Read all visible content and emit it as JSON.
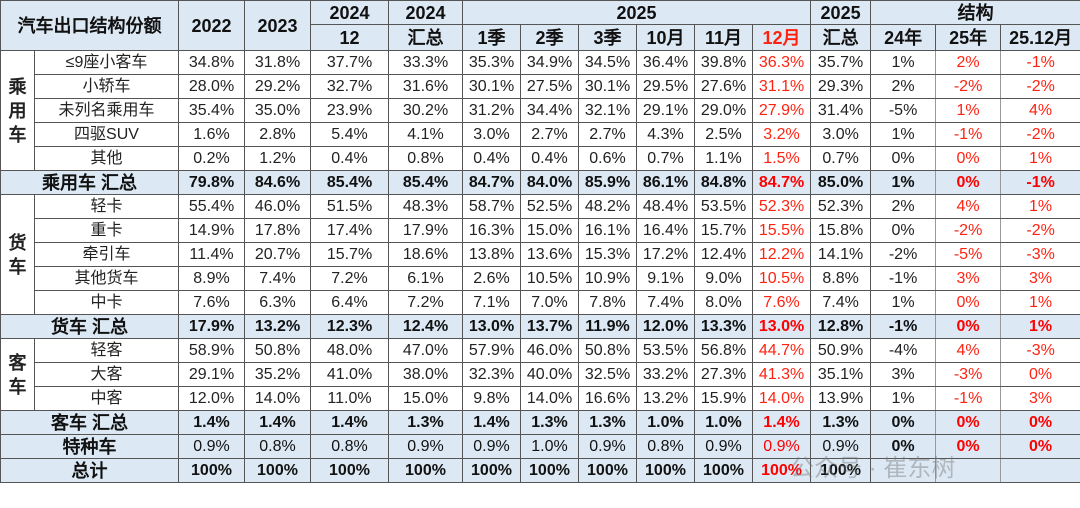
{
  "header": {
    "title": "汽车出口结构份额",
    "y2022": "2022",
    "y2023": "2023",
    "y2024": "2024",
    "m12": "12",
    "y2024b": "2024",
    "total_label": "汇总",
    "y2025": "2025",
    "q1": "1季",
    "q2": "2季",
    "q3": "3季",
    "oct": "10月",
    "nov": "11月",
    "dec": "12月",
    "y2025b": "2025",
    "structure": "结构",
    "s24": "24年",
    "s25": "25年",
    "s2512": "25.12月"
  },
  "colors": {
    "header_bg": "#dce9f5",
    "highlight": "#ff2211"
  },
  "groups": [
    {
      "category": "乘用车",
      "rows": [
        {
          "label": "≤9座小客车",
          "values": [
            "34.8%",
            "31.8%",
            "37.7%",
            "33.3%",
            "35.3%",
            "34.9%",
            "34.5%",
            "36.4%",
            "39.8%",
            "36.3%",
            "35.7%",
            "1%",
            "2%",
            "-1%"
          ]
        },
        {
          "label": "小轿车",
          "values": [
            "28.0%",
            "29.2%",
            "32.7%",
            "31.6%",
            "30.1%",
            "27.5%",
            "30.1%",
            "29.5%",
            "27.6%",
            "31.1%",
            "29.3%",
            "2%",
            "-2%",
            "-2%"
          ]
        },
        {
          "label": "未列名乘用车",
          "values": [
            "35.4%",
            "35.0%",
            "23.9%",
            "30.2%",
            "31.2%",
            "34.4%",
            "32.1%",
            "29.1%",
            "29.0%",
            "27.9%",
            "31.4%",
            "-5%",
            "1%",
            "4%"
          ]
        },
        {
          "label": "四驱SUV",
          "values": [
            "1.6%",
            "2.8%",
            "5.4%",
            "4.1%",
            "3.0%",
            "2.7%",
            "2.7%",
            "4.3%",
            "2.5%",
            "3.2%",
            "3.0%",
            "1%",
            "-1%",
            "-2%"
          ]
        },
        {
          "label": "其他",
          "values": [
            "0.2%",
            "1.2%",
            "0.4%",
            "0.8%",
            "0.4%",
            "0.4%",
            "0.6%",
            "0.7%",
            "1.1%",
            "1.5%",
            "0.7%",
            "0%",
            "0%",
            "1%"
          ]
        }
      ],
      "summary": {
        "label": "乘用车 汇总",
        "values": [
          "79.8%",
          "84.6%",
          "85.4%",
          "85.4%",
          "84.7%",
          "84.0%",
          "85.9%",
          "86.1%",
          "84.8%",
          "84.7%",
          "85.0%",
          "1%",
          "0%",
          "-1%"
        ]
      }
    },
    {
      "category": "货车",
      "rows": [
        {
          "label": "轻卡",
          "values": [
            "55.4%",
            "46.0%",
            "51.5%",
            "48.3%",
            "58.7%",
            "52.5%",
            "48.2%",
            "48.4%",
            "53.5%",
            "52.3%",
            "52.3%",
            "2%",
            "4%",
            "1%"
          ]
        },
        {
          "label": "重卡",
          "values": [
            "14.9%",
            "17.8%",
            "17.4%",
            "17.9%",
            "16.3%",
            "15.0%",
            "16.1%",
            "16.4%",
            "15.7%",
            "15.5%",
            "15.8%",
            "0%",
            "-2%",
            "-2%"
          ]
        },
        {
          "label": "牵引车",
          "values": [
            "11.4%",
            "20.7%",
            "15.7%",
            "18.6%",
            "13.8%",
            "13.6%",
            "15.3%",
            "17.2%",
            "12.4%",
            "12.2%",
            "14.1%",
            "-2%",
            "-5%",
            "-3%"
          ]
        },
        {
          "label": "其他货车",
          "values": [
            "8.9%",
            "7.4%",
            "7.2%",
            "6.1%",
            "2.6%",
            "10.5%",
            "10.9%",
            "9.1%",
            "9.0%",
            "10.5%",
            "8.8%",
            "-1%",
            "3%",
            "3%"
          ]
        },
        {
          "label": "中卡",
          "values": [
            "7.6%",
            "6.3%",
            "6.4%",
            "7.2%",
            "7.1%",
            "7.0%",
            "7.8%",
            "7.4%",
            "8.0%",
            "7.6%",
            "7.4%",
            "1%",
            "0%",
            "1%"
          ]
        }
      ],
      "summary": {
        "label": "货车 汇总",
        "values": [
          "17.9%",
          "13.2%",
          "12.3%",
          "12.4%",
          "13.0%",
          "13.7%",
          "11.9%",
          "12.0%",
          "13.3%",
          "13.0%",
          "12.8%",
          "-1%",
          "0%",
          "1%"
        ]
      }
    },
    {
      "category": "客车",
      "rows": [
        {
          "label": "轻客",
          "values": [
            "58.9%",
            "50.8%",
            "48.0%",
            "47.0%",
            "57.9%",
            "46.0%",
            "50.8%",
            "53.5%",
            "56.8%",
            "44.7%",
            "50.9%",
            "-4%",
            "4%",
            "-3%"
          ]
        },
        {
          "label": "大客",
          "values": [
            "29.1%",
            "35.2%",
            "41.0%",
            "38.0%",
            "32.3%",
            "40.0%",
            "32.5%",
            "33.2%",
            "27.3%",
            "41.3%",
            "35.1%",
            "3%",
            "-3%",
            "0%"
          ]
        },
        {
          "label": "中客",
          "values": [
            "12.0%",
            "14.0%",
            "11.0%",
            "15.0%",
            "9.8%",
            "14.0%",
            "16.6%",
            "13.2%",
            "15.9%",
            "14.0%",
            "13.9%",
            "1%",
            "-1%",
            "3%"
          ]
        }
      ],
      "summary": {
        "label": "客车 汇总",
        "values": [
          "1.4%",
          "1.4%",
          "1.4%",
          "1.3%",
          "1.4%",
          "1.3%",
          "1.3%",
          "1.0%",
          "1.0%",
          "1.4%",
          "1.3%",
          "0%",
          "0%",
          "0%"
        ]
      }
    }
  ],
  "special": {
    "label": "特种车",
    "values": [
      "0.9%",
      "0.8%",
      "0.8%",
      "0.9%",
      "0.9%",
      "1.0%",
      "0.9%",
      "0.8%",
      "0.9%",
      "0.9%",
      "0.9%",
      "0%",
      "0%",
      "0%"
    ]
  },
  "total": {
    "label": "总计",
    "values": [
      "100%",
      "100%",
      "100%",
      "100%",
      "100%",
      "100%",
      "100%",
      "100%",
      "100%",
      "100%",
      "100%",
      "",
      "",
      ""
    ]
  },
  "watermark": "公众号 · 崔东树"
}
